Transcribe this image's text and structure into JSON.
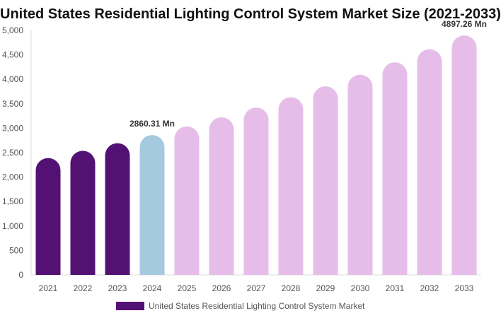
{
  "chart_data": {
    "type": "bar",
    "title": "United States Residential Lighting Control System Market Size (2021-2033)",
    "categories": [
      "2021",
      "2022",
      "2023",
      "2024",
      "2025",
      "2026",
      "2027",
      "2028",
      "2029",
      "2030",
      "2031",
      "2032",
      "2033"
    ],
    "series": [
      {
        "name": "United States Residential Lighting Control System Market",
        "values": [
          2390,
          2538,
          2694,
          2860.31,
          3036,
          3223,
          3422,
          3633,
          3857,
          4095,
          4347,
          4615,
          4897.26
        ]
      }
    ],
    "data_labels": {
      "3": "2860.31 Mn",
      "12": "4897.26 Mn"
    },
    "ylim": [
      0,
      5000
    ],
    "yticks": [
      0,
      500,
      1000,
      1500,
      2000,
      2500,
      3000,
      3500,
      4000,
      4500,
      5000
    ],
    "ytick_labels": [
      "0",
      "500",
      "1,000",
      "1,500",
      "2,000",
      "2,500",
      "3,000",
      "3,500",
      "4,000",
      "4,500",
      "5,000"
    ],
    "colors": {
      "historical": "#541174",
      "current": "#a4cadf",
      "forecast": "#e6bde9"
    },
    "legend_position": "bottom",
    "grid": false
  }
}
